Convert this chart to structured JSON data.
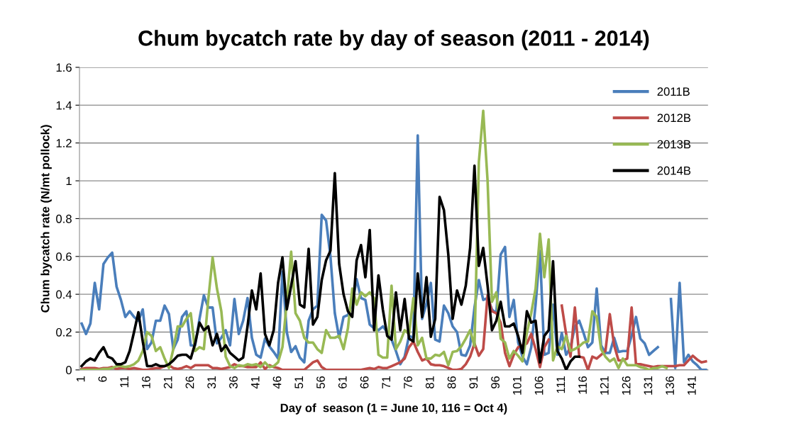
{
  "chart_data": {
    "type": "line",
    "title": "Chum bycatch rate by day of season (2011 - 2014)",
    "xlabel": "Day of  season (1 = June 10, 116 = Oct 4)",
    "ylabel": "Chum bycatch rate (N/mt pollock)",
    "categories": [
      "1",
      null,
      null,
      null,
      null,
      "6",
      null,
      null,
      null,
      null,
      "11",
      null,
      null,
      null,
      null,
      "16",
      null,
      null,
      null,
      null,
      "21",
      null,
      null,
      null,
      null,
      "26",
      null,
      null,
      null,
      null,
      "31",
      null,
      null,
      null,
      null,
      "36",
      null,
      null,
      null,
      null,
      "41",
      null,
      null,
      null,
      null,
      "46",
      null,
      null,
      null,
      null,
      "51",
      null,
      null,
      null,
      null,
      "56",
      null,
      null,
      null,
      null,
      "61",
      null,
      null,
      null,
      null,
      "66",
      null,
      null,
      null,
      null,
      "71",
      null,
      null,
      null,
      null,
      "76",
      null,
      null,
      null,
      null,
      "81",
      null,
      null,
      null,
      null,
      "86",
      null,
      null,
      null,
      null,
      "91",
      null,
      null,
      null,
      null,
      "96",
      null,
      null,
      null,
      null,
      "101",
      null,
      null,
      null,
      null,
      "106",
      null,
      null,
      null,
      null,
      "111",
      null,
      null,
      null,
      null,
      "116",
      null,
      null,
      null,
      null,
      "121",
      null,
      null,
      null,
      null,
      "126",
      null,
      null,
      null,
      null,
      "131",
      null,
      null,
      null,
      null,
      "136",
      null,
      null,
      null,
      null,
      "141",
      null,
      null,
      null
    ],
    "series": [
      {
        "name": "2011B",
        "color": "#4a7ebb",
        "values": [
          0.245,
          0.19,
          0.245,
          0.46,
          0.32,
          0.56,
          0.595,
          0.62,
          0.44,
          0.37,
          0.28,
          0.31,
          0.28,
          0.26,
          0.32,
          0.11,
          0.145,
          0.26,
          0.26,
          0.34,
          0.295,
          0.11,
          0.16,
          0.28,
          0.31,
          0.13,
          0.13,
          0.27,
          0.395,
          0.33,
          0.33,
          0.14,
          0.17,
          0.21,
          0.13,
          0.375,
          0.19,
          0.26,
          0.38,
          0.17,
          0.08,
          0.065,
          0.165,
          0.125,
          0.095,
          0.06,
          0.52,
          0.2,
          0.095,
          0.125,
          0.065,
          0.04,
          0.26,
          0.32,
          0.34,
          0.82,
          0.79,
          0.6,
          0.3,
          0.17,
          0.28,
          0.29,
          0.35,
          0.48,
          0.38,
          0.37,
          0.24,
          0.22,
          0.21,
          0.23,
          0.2,
          0.16,
          0.1,
          0.03,
          0.07,
          0.18,
          0.17,
          1.24,
          0.27,
          0.35,
          0.46,
          0.16,
          0.15,
          0.34,
          0.3,
          0.23,
          0.2,
          0.08,
          0.075,
          0.13,
          0.33,
          0.475,
          0.37,
          0.38,
          0.32,
          0.3,
          0.61,
          0.65,
          0.28,
          0.37,
          0.145,
          0.07,
          0.03,
          0.12,
          0.345,
          0.63,
          0.08,
          0.09,
          0.345,
          0.08,
          0.195,
          0.08,
          0.12,
          0.23,
          0.26,
          0.195,
          0.12,
          0.145,
          0.43,
          0.13,
          0.09,
          0.09,
          0.17,
          0.095,
          0.1,
          0.1,
          0.18,
          0.28,
          0.165,
          0.14,
          0.08,
          0.1,
          0.12,
          null,
          null,
          0.375,
          0.01,
          0.46,
          0.04,
          0.08,
          0.045,
          0.025,
          0,
          0
        ]
      },
      {
        "name": "2012B",
        "color": "#be4b48",
        "values": [
          0.005,
          0.01,
          0.01,
          0.01,
          0.005,
          0.01,
          0.01,
          0.015,
          0.005,
          0.01,
          0.01,
          0.005,
          0.01,
          0.005,
          0,
          0,
          0.005,
          0.01,
          0.01,
          0.02,
          0.025,
          0.01,
          0.005,
          0.01,
          0.02,
          0.01,
          0.025,
          0.025,
          0.025,
          0.025,
          0.01,
          0.01,
          0.005,
          0.01,
          0.015,
          0.03,
          0.02,
          0.02,
          0.015,
          0.015,
          0.015,
          0.04,
          0.005,
          0.025,
          0.015,
          0.01,
          0,
          0,
          0,
          0,
          0,
          0,
          0.02,
          0.04,
          0.05,
          0.015,
          0,
          0,
          0,
          0,
          0,
          0,
          0,
          0,
          0,
          0.005,
          0.01,
          0.005,
          0.015,
          0.01,
          0.01,
          0.02,
          0.03,
          0.04,
          0.06,
          0.12,
          0.15,
          0.095,
          0.05,
          0.06,
          0.03,
          0.025,
          0.025,
          0.02,
          0.01,
          0,
          0,
          0.005,
          0.03,
          0.07,
          0.14,
          0.075,
          0.11,
          0.395,
          0.31,
          0.3,
          0.25,
          0.09,
          0.02,
          0.08,
          0.12,
          0.13,
          0.14,
          0.19,
          0.11,
          0.015,
          0.12,
          0.16,
          null,
          null,
          0.34,
          0.19,
          0.07,
          0.33,
          0.07,
          0.065,
          0,
          0.07,
          0.06,
          0.08,
          0.1,
          0.295,
          0.13,
          0.05,
          0.05,
          0.06,
          0.33,
          0.03,
          0.03,
          0.025,
          0.02,
          0.015,
          0.02,
          0.02,
          0.02,
          0.02,
          0.02,
          0.025,
          0.025,
          0.05,
          0.075,
          0.055,
          0.04,
          0.045
        ]
      },
      {
        "name": "2013B",
        "color": "#98b954",
        "values": [
          0,
          0,
          0,
          0,
          0,
          0.005,
          0.005,
          0.01,
          0.02,
          0.02,
          0.015,
          0.02,
          0.03,
          0.05,
          0.1,
          0.2,
          0.18,
          0.1,
          0.12,
          0.06,
          0.01,
          0.11,
          0.23,
          0.23,
          0.27,
          0.3,
          0.1,
          0.12,
          0.11,
          0.37,
          0.595,
          0.43,
          0.31,
          0.07,
          0.02,
          0.01,
          0.025,
          0.02,
          0.03,
          0.025,
          0.03,
          0.015,
          0.04,
          0.015,
          0.02,
          0.04,
          0.12,
          0.36,
          0.625,
          0.3,
          0.26,
          0.17,
          0.145,
          0.145,
          0.11,
          0.09,
          0.21,
          0.17,
          0.17,
          0.18,
          0.11,
          0.22,
          0.43,
          0.345,
          0.41,
          0.39,
          0.41,
          0.38,
          0.08,
          0.065,
          0.065,
          0.445,
          0.11,
          0.15,
          0.21,
          0.19,
          0.38,
          0.13,
          0.17,
          0.06,
          0.06,
          0.08,
          0.075,
          0.095,
          0.025,
          0.095,
          0.1,
          0.125,
          0.165,
          0.21,
          0.125,
          1.1,
          1.37,
          1.0,
          0.36,
          0.41,
          0.165,
          0.145,
          0.06,
          0.1,
          0.075,
          0.045,
          0.195,
          0.3,
          0.43,
          0.72,
          0.49,
          0.69,
          0.05,
          0.125,
          0.11,
          0.18,
          0.1,
          0.11,
          0.125,
          0.145,
          0.15,
          0.31,
          0.28,
          0.11,
          0.07,
          0.045,
          0.06,
          0.01,
          0.06,
          0.025,
          0.025,
          0.025,
          0.015,
          0.01,
          0,
          0.01,
          0.01,
          0.02,
          0.01,
          null,
          null,
          null,
          null,
          null,
          null,
          null,
          null,
          null
        ]
      },
      {
        "name": "2014B",
        "color": "#000000",
        "values": [
          0.02,
          0.045,
          0.06,
          0.05,
          0.09,
          0.12,
          0.07,
          0.06,
          0.03,
          0.03,
          0.04,
          0.1,
          0.2,
          0.305,
          0.15,
          0.02,
          0.02,
          0.03,
          0.02,
          0.02,
          0.03,
          0.05,
          0.075,
          0.08,
          0.08,
          0.06,
          0.14,
          0.25,
          0.21,
          0.23,
          0.13,
          0.19,
          0.1,
          0.13,
          0.09,
          0.07,
          0.05,
          0.065,
          0.23,
          0.42,
          0.32,
          0.51,
          0.19,
          0.13,
          0.21,
          0.46,
          0.595,
          0.32,
          0.445,
          0.575,
          0.345,
          0.33,
          0.64,
          0.24,
          0.28,
          0.475,
          0.58,
          0.63,
          1.04,
          0.56,
          0.4,
          0.31,
          0.28,
          0.58,
          0.66,
          0.49,
          0.74,
          0.21,
          0.5,
          0.32,
          0.18,
          0.16,
          0.41,
          0.21,
          0.375,
          0.165,
          0.15,
          0.51,
          0.28,
          0.49,
          0.175,
          0.27,
          0.915,
          0.845,
          0.61,
          0.27,
          0.42,
          0.345,
          0.445,
          0.645,
          1.08,
          0.55,
          0.645,
          0.445,
          0.21,
          0.26,
          0.36,
          0.23,
          0.23,
          0.245,
          0.18,
          0.09,
          0.31,
          0.25,
          0.26,
          0.04,
          0.18,
          0.21,
          0.575,
          0.1,
          0.06,
          0,
          0.045,
          0.07,
          0.07,
          null,
          null,
          null,
          null,
          null,
          null,
          null,
          null,
          null,
          null,
          null,
          null,
          null,
          null,
          null,
          null,
          null,
          null,
          null,
          null,
          null,
          null,
          null,
          null,
          null,
          null,
          null,
          null,
          null
        ]
      }
    ],
    "ylim": [
      0,
      1.6
    ],
    "yticks": [
      0,
      0.2,
      0.4,
      0.6,
      0.8,
      1,
      1.2,
      1.4,
      1.6
    ],
    "grid": "y",
    "legend": "top right",
    "marker": "none",
    "line_style": "solid"
  }
}
